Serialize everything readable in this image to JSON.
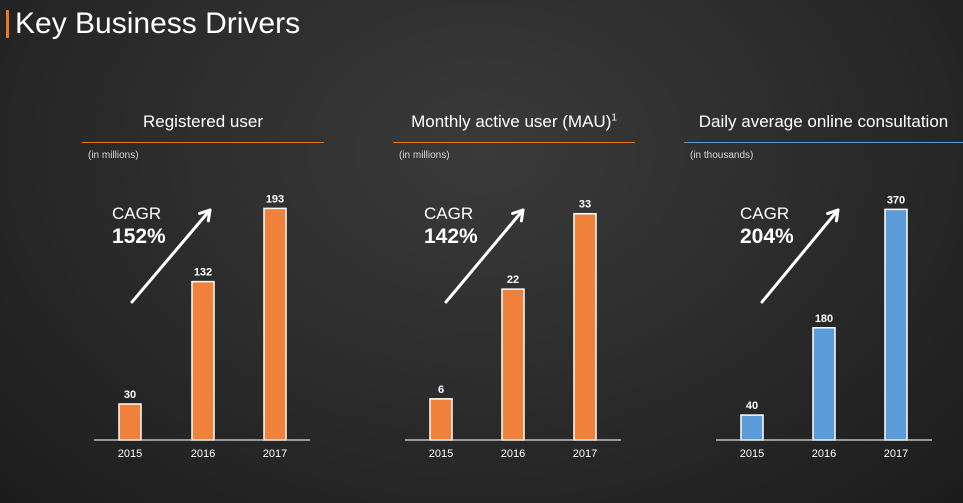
{
  "page": {
    "title": "Key Business Drivers",
    "accent_color": "#e87722"
  },
  "chart_data": [
    {
      "type": "bar",
      "title": "Registered user",
      "title_superscript": "",
      "subtitle": "(in millions)",
      "categories": [
        "2015",
        "2016",
        "2017"
      ],
      "values": [
        30,
        132,
        193
      ],
      "ylim": [
        0,
        200
      ],
      "color": "#f0813a",
      "rule_color": "#e87722",
      "annotation": {
        "label": "CAGR",
        "value": "152%"
      },
      "arrow": "up-right",
      "grid": false,
      "legend": false
    },
    {
      "type": "bar",
      "title": "Monthly active user (MAU)",
      "title_superscript": "1",
      "subtitle": "(in millions)",
      "categories": [
        "2015",
        "2016",
        "2017"
      ],
      "values": [
        6,
        22,
        33
      ],
      "ylim": [
        0,
        35
      ],
      "color": "#f0813a",
      "rule_color": "#e87722",
      "annotation": {
        "label": "CAGR",
        "value": "142%"
      },
      "arrow": "up-right",
      "grid": false,
      "legend": false
    },
    {
      "type": "bar",
      "title": "Daily average online consultation",
      "title_superscript": "",
      "subtitle": "(in thousands)",
      "categories": [
        "2015",
        "2016",
        "2017"
      ],
      "values": [
        40,
        180,
        370
      ],
      "ylim": [
        0,
        385
      ],
      "color": "#5b9bd8",
      "rule_color": "#5b9bd8",
      "annotation": {
        "label": "CAGR",
        "value": "204%"
      },
      "arrow": "up-right",
      "grid": false,
      "legend": false
    }
  ]
}
